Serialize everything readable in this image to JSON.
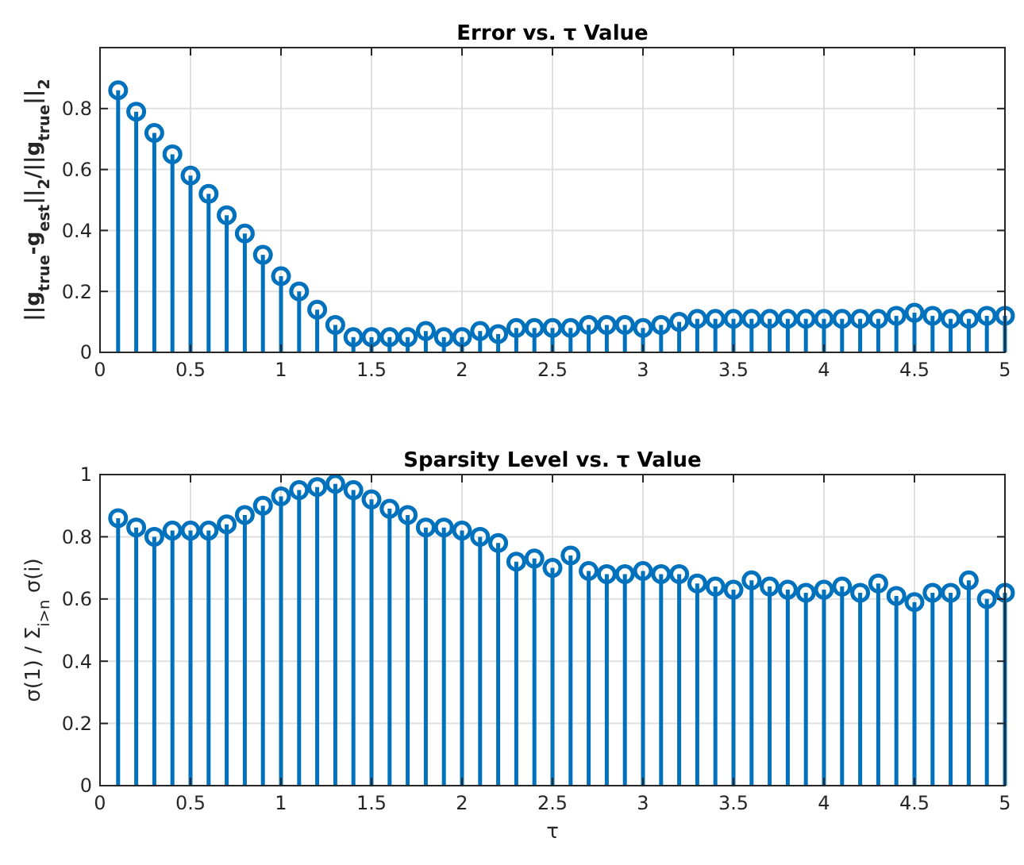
{
  "chart_data": [
    {
      "type": "lollipop",
      "title": "Error vs. τ Value",
      "ylabel": "||g$_{true}$-g$_{est}$||$_{2}$/||g$_{true}$||$_{2}$",
      "x": [
        0.1,
        0.2,
        0.3,
        0.4,
        0.5,
        0.6,
        0.7,
        0.8,
        0.9,
        1.0,
        1.1,
        1.2,
        1.3,
        1.4,
        1.5,
        1.6,
        1.7,
        1.8,
        1.9,
        2.0,
        2.1,
        2.2,
        2.3,
        2.4,
        2.5,
        2.6,
        2.7,
        2.8,
        2.9,
        3.0,
        3.1,
        3.2,
        3.3,
        3.4,
        3.5,
        3.6,
        3.7,
        3.8,
        3.9,
        4.0,
        4.1,
        4.2,
        4.3,
        4.4,
        4.5,
        4.6,
        4.7,
        4.8,
        4.9,
        5.0
      ],
      "series": [
        {
          "color": "#0072bd",
          "values": [
            0.86,
            0.79,
            0.72,
            0.65,
            0.58,
            0.52,
            0.45,
            0.39,
            0.32,
            0.25,
            0.2,
            0.14,
            0.09,
            0.05,
            0.05,
            0.05,
            0.05,
            0.07,
            0.05,
            0.05,
            0.07,
            0.06,
            0.08,
            0.08,
            0.08,
            0.08,
            0.09,
            0.09,
            0.09,
            0.08,
            0.09,
            0.1,
            0.11,
            0.11,
            0.11,
            0.11,
            0.11,
            0.11,
            0.11,
            0.11,
            0.11,
            0.11,
            0.11,
            0.12,
            0.13,
            0.12,
            0.11,
            0.11,
            0.12,
            0.12
          ]
        }
      ],
      "xlim": [
        0,
        5
      ],
      "ylim": [
        0,
        1
      ],
      "xticks": [
        0,
        0.5,
        1,
        1.5,
        2,
        2.5,
        3,
        3.5,
        4,
        4.5,
        5
      ],
      "yticks": [
        0,
        0.2,
        0.4,
        0.6,
        0.8
      ],
      "grid": true,
      "marker": "circle"
    },
    {
      "type": "lollipop",
      "title": "Sparsity Level vs. τ Value",
      "xlabel": "τ",
      "ylabel": "σ(1) / Σ$_{i>n}$ σ(i)",
      "x": [
        0.1,
        0.2,
        0.3,
        0.4,
        0.5,
        0.6,
        0.7,
        0.8,
        0.9,
        1.0,
        1.1,
        1.2,
        1.3,
        1.4,
        1.5,
        1.6,
        1.7,
        1.8,
        1.9,
        2.0,
        2.1,
        2.2,
        2.3,
        2.4,
        2.5,
        2.6,
        2.7,
        2.8,
        2.9,
        3.0,
        3.1,
        3.2,
        3.3,
        3.4,
        3.5,
        3.6,
        3.7,
        3.8,
        3.9,
        4.0,
        4.1,
        4.2,
        4.3,
        4.4,
        4.5,
        4.6,
        4.7,
        4.8,
        4.9,
        5.0
      ],
      "series": [
        {
          "color": "#0072bd",
          "values": [
            0.86,
            0.83,
            0.8,
            0.82,
            0.82,
            0.82,
            0.84,
            0.87,
            0.9,
            0.93,
            0.95,
            0.96,
            0.97,
            0.95,
            0.92,
            0.89,
            0.87,
            0.83,
            0.83,
            0.82,
            0.8,
            0.78,
            0.72,
            0.73,
            0.7,
            0.74,
            0.69,
            0.68,
            0.68,
            0.69,
            0.68,
            0.68,
            0.65,
            0.64,
            0.63,
            0.66,
            0.64,
            0.63,
            0.62,
            0.63,
            0.64,
            0.62,
            0.65,
            0.61,
            0.59,
            0.62,
            0.62,
            0.66,
            0.6,
            0.62
          ]
        }
      ],
      "xlim": [
        0,
        5
      ],
      "ylim": [
        0,
        1
      ],
      "xticks": [
        0,
        0.5,
        1,
        1.5,
        2,
        2.5,
        3,
        3.5,
        4,
        4.5,
        5
      ],
      "yticks": [
        0,
        0.2,
        0.4,
        0.6,
        0.8,
        1
      ],
      "grid": true,
      "marker": "circle"
    }
  ]
}
